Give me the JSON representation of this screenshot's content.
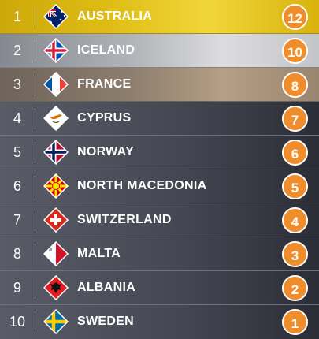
{
  "colors": {
    "points_badge": "#ef8d2c",
    "row_default": "#454853",
    "row_first": "#dfbd15",
    "row_second": "#c4c5c9",
    "row_third": "#9a8670"
  },
  "rows": [
    {
      "rank": "1",
      "country": "AUSTRALIA",
      "points": "12",
      "flag_icon": "australia-flag-icon"
    },
    {
      "rank": "2",
      "country": "ICELAND",
      "points": "10",
      "flag_icon": "iceland-flag-icon"
    },
    {
      "rank": "3",
      "country": "FRANCE",
      "points": "8",
      "flag_icon": "france-flag-icon"
    },
    {
      "rank": "4",
      "country": "CYPRUS",
      "points": "7",
      "flag_icon": "cyprus-flag-icon"
    },
    {
      "rank": "5",
      "country": "NORWAY",
      "points": "6",
      "flag_icon": "norway-flag-icon"
    },
    {
      "rank": "6",
      "country": "NORTH MACEDONIA",
      "points": "5",
      "flag_icon": "north-macedonia-flag-icon"
    },
    {
      "rank": "7",
      "country": "SWITZERLAND",
      "points": "4",
      "flag_icon": "switzerland-flag-icon"
    },
    {
      "rank": "8",
      "country": "MALTA",
      "points": "3",
      "flag_icon": "malta-flag-icon"
    },
    {
      "rank": "9",
      "country": "ALBANIA",
      "points": "2",
      "flag_icon": "albania-flag-icon"
    },
    {
      "rank": "10",
      "country": "SWEDEN",
      "points": "1",
      "flag_icon": "sweden-flag-icon"
    }
  ]
}
